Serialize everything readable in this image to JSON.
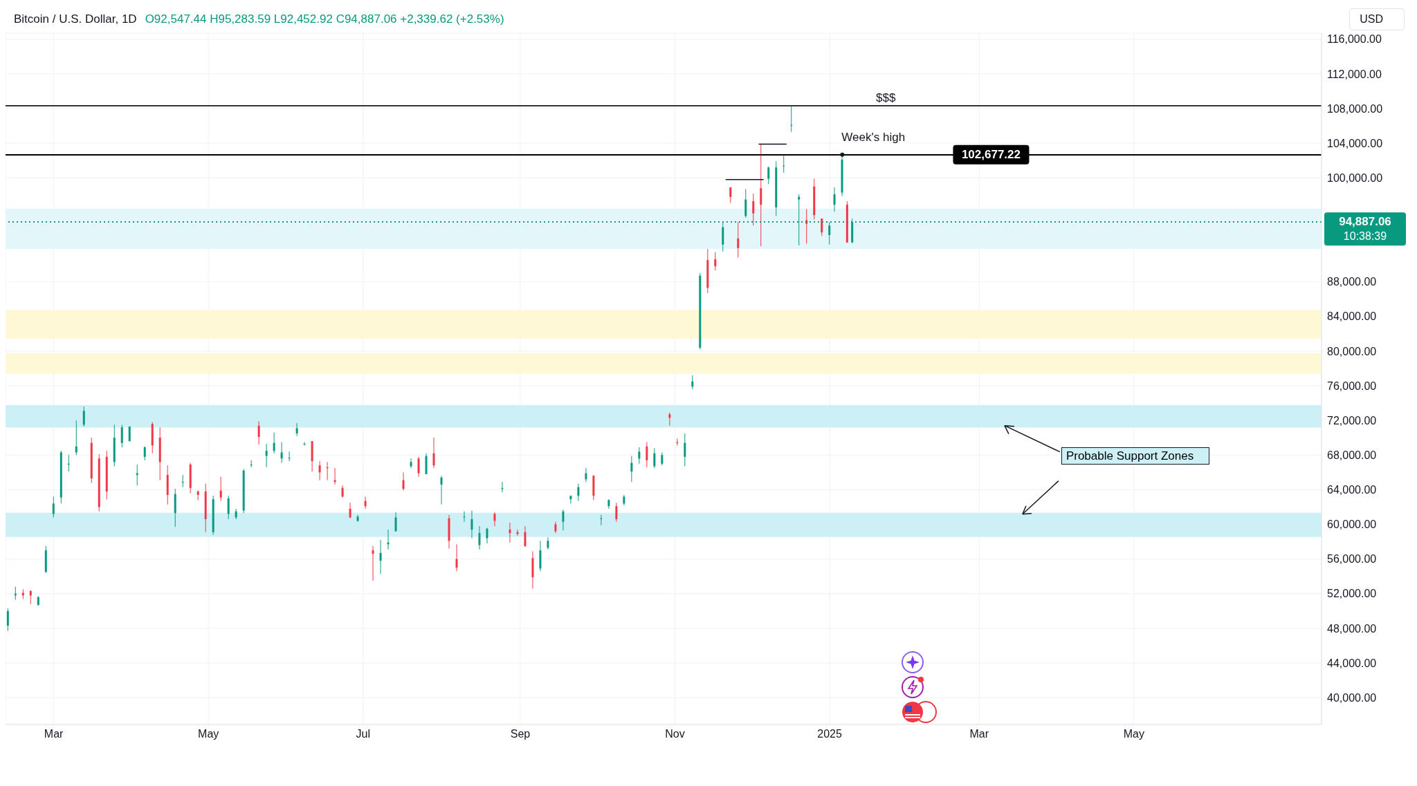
{
  "chart_data": {
    "type": "candlestick",
    "title": "Bitcoin / U.S. Dollar, 1D",
    "subtitle": "O92,547.44  H95,283.59  L92,452.92  C94,887.06  +2,339.62 (+2.53%)",
    "x": [
      "2024-02-12",
      "2024-02-15",
      "2024-02-18",
      "2024-02-21",
      "2024-02-24",
      "2024-02-27",
      "2024-03-01",
      "2024-03-04",
      "2024-03-07",
      "2024-03-10",
      "2024-03-13",
      "2024-03-16",
      "2024-03-19",
      "2024-03-22",
      "2024-03-25",
      "2024-03-28",
      "2024-03-31",
      "2024-04-03",
      "2024-04-06",
      "2024-04-09",
      "2024-04-12",
      "2024-04-15",
      "2024-04-18",
      "2024-04-21",
      "2024-04-24",
      "2024-04-27",
      "2024-04-30",
      "2024-05-03",
      "2024-05-06",
      "2024-05-09",
      "2024-05-12",
      "2024-05-15",
      "2024-05-18",
      "2024-05-21",
      "2024-05-24",
      "2024-05-27",
      "2024-05-30",
      "2024-06-02",
      "2024-06-05",
      "2024-06-08",
      "2024-06-11",
      "2024-06-14",
      "2024-06-17",
      "2024-06-20",
      "2024-06-23",
      "2024-06-26",
      "2024-06-29",
      "2024-07-02",
      "2024-07-05",
      "2024-07-08",
      "2024-07-11",
      "2024-07-14",
      "2024-07-17",
      "2024-07-20",
      "2024-07-23",
      "2024-07-26",
      "2024-07-29",
      "2024-08-01",
      "2024-08-04",
      "2024-08-07",
      "2024-08-10",
      "2024-08-13",
      "2024-08-16",
      "2024-08-19",
      "2024-08-22",
      "2024-08-25",
      "2024-08-28",
      "2024-08-31",
      "2024-09-03",
      "2024-09-06",
      "2024-09-09",
      "2024-09-12",
      "2024-09-15",
      "2024-09-18",
      "2024-09-21",
      "2024-09-24",
      "2024-09-27",
      "2024-09-30",
      "2024-10-03",
      "2024-10-06",
      "2024-10-09",
      "2024-10-12",
      "2024-10-15",
      "2024-10-18",
      "2024-10-21",
      "2024-10-24",
      "2024-10-27",
      "2024-10-30",
      "2024-11-02",
      "2024-11-05",
      "2024-11-08",
      "2024-11-11",
      "2024-11-14",
      "2024-11-17",
      "2024-11-20",
      "2024-11-23",
      "2024-11-26",
      "2024-11-29",
      "2024-12-02",
      "2024-12-05",
      "2024-12-08",
      "2024-12-11",
      "2024-12-14",
      "2024-12-17",
      "2024-12-20",
      "2024-12-23",
      "2024-12-26",
      "2024-12-29",
      "2025-01-01",
      "2025-01-03",
      "2025-01-06",
      "2025-01-08",
      "2025-01-10"
    ],
    "ohlc": [
      [
        48300,
        50300,
        47700,
        50000
      ],
      [
        51800,
        52800,
        51300,
        52000
      ],
      [
        52100,
        52500,
        51400,
        51800
      ],
      [
        52300,
        52400,
        50800,
        51800
      ],
      [
        50700,
        51700,
        50600,
        51600
      ],
      [
        54500,
        57500,
        54400,
        57000
      ],
      [
        61200,
        63200,
        60800,
        62400
      ],
      [
        63100,
        68500,
        62400,
        68300
      ],
      [
        66900,
        68000,
        66100,
        67000
      ],
      [
        68300,
        72000,
        68000,
        69000
      ],
      [
        71500,
        73600,
        71300,
        73100
      ],
      [
        69400,
        70000,
        64800,
        65300
      ],
      [
        67600,
        68100,
        61500,
        62000
      ],
      [
        67800,
        68500,
        62900,
        63800
      ],
      [
        67200,
        71500,
        66700,
        70000
      ],
      [
        69400,
        71500,
        68900,
        71200
      ],
      [
        69600,
        71300,
        69600,
        71300
      ],
      [
        65700,
        66900,
        64500,
        65900
      ],
      [
        67800,
        69000,
        67400,
        68900
      ],
      [
        71600,
        71800,
        68200,
        69100
      ],
      [
        70000,
        71200,
        65100,
        67200
      ],
      [
        65700,
        66800,
        62300,
        63400
      ],
      [
        61300,
        64100,
        59700,
        63500
      ],
      [
        64900,
        65700,
        64300,
        64900
      ],
      [
        66900,
        67100,
        63600,
        64200
      ],
      [
        63800,
        63900,
        62800,
        63400
      ],
      [
        63800,
        64700,
        59100,
        60600
      ],
      [
        59100,
        63300,
        58800,
        62900
      ],
      [
        63900,
        65500,
        62700,
        63100
      ],
      [
        61200,
        63300,
        60600,
        63000
      ],
      [
        60800,
        61800,
        60600,
        61500
      ],
      [
        61600,
        66400,
        61300,
        66200
      ],
      [
        66900,
        67400,
        66600,
        66900
      ],
      [
        71400,
        71900,
        69200,
        70100
      ],
      [
        67900,
        69300,
        66600,
        68500
      ],
      [
        68500,
        70600,
        68200,
        69400
      ],
      [
        67600,
        69500,
        67100,
        68300
      ],
      [
        67700,
        68400,
        67300,
        67700
      ],
      [
        70500,
        71700,
        70200,
        71100
      ],
      [
        69300,
        69500,
        69100,
        69300
      ],
      [
        69600,
        69600,
        66100,
        67300
      ],
      [
        66800,
        67300,
        65100,
        66000
      ],
      [
        66600,
        67200,
        65100,
        66500
      ],
      [
        65100,
        66500,
        64600,
        64900
      ],
      [
        64200,
        64500,
        63100,
        63200
      ],
      [
        61800,
        62500,
        60700,
        60800
      ],
      [
        60400,
        61100,
        60300,
        60900
      ],
      [
        62700,
        63200,
        61800,
        62100
      ],
      [
        57000,
        57500,
        53500,
        56600
      ],
      [
        55800,
        58200,
        54300,
        56700
      ],
      [
        57700,
        59400,
        57100,
        57900
      ],
      [
        59200,
        61400,
        59200,
        60800
      ],
      [
        65100,
        66000,
        63900,
        64100
      ],
      [
        66700,
        67600,
        66500,
        67200
      ],
      [
        67600,
        67800,
        65500,
        65900
      ],
      [
        65800,
        68200,
        65800,
        67900
      ],
      [
        68200,
        70000,
        66500,
        66800
      ],
      [
        64600,
        65600,
        62300,
        65400
      ],
      [
        60700,
        61100,
        57200,
        58100
      ],
      [
        56000,
        57700,
        54600,
        55000
      ],
      [
        60900,
        61500,
        60300,
        60900
      ],
      [
        59400,
        61600,
        58400,
        60600
      ],
      [
        57600,
        59800,
        57100,
        59000
      ],
      [
        58400,
        59600,
        57800,
        59500
      ],
      [
        61200,
        61400,
        59800,
        60400
      ],
      [
        64100,
        64900,
        63700,
        64200
      ],
      [
        59400,
        60200,
        57900,
        59000
      ],
      [
        59100,
        59400,
        58700,
        58900
      ],
      [
        59100,
        59800,
        57400,
        57500
      ],
      [
        56100,
        56900,
        52600,
        53900
      ],
      [
        54900,
        58100,
        54600,
        57000
      ],
      [
        57300,
        58500,
        57100,
        58100
      ],
      [
        60000,
        60300,
        59000,
        59200
      ],
      [
        60300,
        61700,
        59300,
        61500
      ],
      [
        62900,
        63300,
        62400,
        63300
      ],
      [
        63300,
        64700,
        62700,
        64300
      ],
      [
        65200,
        66500,
        64900,
        65900
      ],
      [
        65600,
        65700,
        62800,
        63300
      ],
      [
        60700,
        61100,
        59900,
        60700
      ],
      [
        62100,
        62900,
        61800,
        62800
      ],
      [
        62100,
        62500,
        60300,
        60600
      ],
      [
        62400,
        63400,
        62200,
        63200
      ],
      [
        66100,
        67900,
        64900,
        67100
      ],
      [
        67600,
        68900,
        67000,
        68400
      ],
      [
        69000,
        69500,
        66600,
        67400
      ],
      [
        66700,
        68800,
        66500,
        68200
      ],
      [
        67000,
        68300,
        66800,
        68000
      ],
      [
        72700,
        72900,
        71400,
        72300
      ],
      [
        69500,
        69900,
        69100,
        69400
      ],
      [
        67800,
        70500,
        66700,
        69400
      ],
      [
        75900,
        77200,
        75600,
        76500
      ],
      [
        80400,
        89000,
        80200,
        88700
      ],
      [
        90500,
        91800,
        86700,
        87300
      ],
      [
        90600,
        91400,
        89300,
        89800
      ],
      [
        92300,
        94900,
        91500,
        94300
      ],
      [
        98900,
        98900,
        97100,
        97800
      ],
      [
        93000,
        94900,
        90800,
        91900
      ],
      [
        95600,
        98700,
        95400,
        97500
      ],
      [
        97300,
        98200,
        94500,
        95900
      ],
      [
        98800,
        103900,
        92100,
        96900
      ],
      [
        99900,
        101300,
        99300,
        101200
      ],
      [
        96600,
        101900,
        95600,
        101200
      ],
      [
        101400,
        102600,
        100600,
        101400
      ],
      [
        106100,
        108300,
        105300,
        106100
      ],
      [
        97500,
        98100,
        92200,
        97800
      ],
      [
        95100,
        96400,
        92400,
        94700
      ],
      [
        99000,
        99900,
        95200,
        95700
      ],
      [
        95300,
        95300,
        93300,
        93700
      ],
      [
        93400,
        94900,
        92300,
        94500
      ],
      [
        96900,
        98900,
        96100,
        98100
      ],
      [
        98300,
        102677.22,
        97900,
        102100
      ],
      [
        96900,
        97300,
        92500,
        92547.44
      ],
      [
        92547.44,
        95283.59,
        92452.92,
        94887.06
      ]
    ],
    "colors": [
      "#089981",
      "#089981",
      "#f23645",
      "#f23645",
      "#089981",
      "#089981",
      "#089981",
      "#089981",
      "#089981",
      "#089981",
      "#089981",
      "#f23645",
      "#f23645",
      "#f23645",
      "#089981",
      "#089981",
      "#089981",
      "#089981",
      "#089981",
      "#f23645",
      "#f23645",
      "#f23645",
      "#089981",
      "#089981",
      "#f23645",
      "#f23645",
      "#f23645",
      "#089981",
      "#f23645",
      "#089981",
      "#089981",
      "#089981",
      "#089981",
      "#f23645",
      "#089981",
      "#089981",
      "#089981",
      "#089981",
      "#089981",
      "#089981",
      "#f23645",
      "#f23645",
      "#f23645",
      "#f23645",
      "#f23645",
      "#f23645",
      "#089981",
      "#f23645",
      "#f23645",
      "#089981",
      "#089981",
      "#089981",
      "#f23645",
      "#089981",
      "#f23645",
      "#089981",
      "#f23645",
      "#089981",
      "#f23645",
      "#f23645",
      "#089981",
      "#089981",
      "#089981",
      "#089981",
      "#f23645",
      "#089981",
      "#f23645",
      "#f23645",
      "#f23645",
      "#f23645",
      "#089981",
      "#089981",
      "#f23645",
      "#089981",
      "#089981",
      "#089981",
      "#089981",
      "#f23645",
      "#089981",
      "#089981",
      "#f23645",
      "#089981",
      "#089981",
      "#089981",
      "#f23645",
      "#089981",
      "#089981",
      "#f23645",
      "#f23645",
      "#089981",
      "#089981",
      "#089981",
      "#f23645",
      "#f23645",
      "#089981",
      "#f23645",
      "#f23645",
      "#089981",
      "#f23645",
      "#f23645",
      "#089981",
      "#089981",
      "#089981",
      "#089981",
      "#089981",
      "#f23645",
      "#f23645",
      "#f23645",
      "#089981",
      "#089981",
      "#089981",
      "#f23645",
      "#089981"
    ],
    "xlim": [
      "2024-02-11",
      "2025-07-14"
    ],
    "xticks": [
      {
        "value": "2024-03-01",
        "label": "Mar"
      },
      {
        "value": "2024-05-01",
        "label": "May"
      },
      {
        "value": "2024-07-01",
        "label": "Jul"
      },
      {
        "value": "2024-09-01",
        "label": "Sep"
      },
      {
        "value": "2024-11-01",
        "label": "Nov"
      },
      {
        "value": "2025-01-01",
        "label": "2025"
      },
      {
        "value": "2025-03-01",
        "label": "Mar"
      },
      {
        "value": "2025-05-01",
        "label": "May"
      }
    ],
    "ylim": [
      36900,
      116700
    ],
    "yticks": [
      {
        "value": 40000,
        "label": "40,000.00"
      },
      {
        "value": 44000,
        "label": "44,000.00"
      },
      {
        "value": 48000,
        "label": "48,000.00"
      },
      {
        "value": 52000,
        "label": "52,000.00"
      },
      {
        "value": 56000,
        "label": "56,000.00"
      },
      {
        "value": 60000,
        "label": "60,000.00"
      },
      {
        "value": 64000,
        "label": "64,000.00"
      },
      {
        "value": 68000,
        "label": "68,000.00"
      },
      {
        "value": 72000,
        "label": "72,000.00"
      },
      {
        "value": 76000,
        "label": "76,000.00"
      },
      {
        "value": 80000,
        "label": "80,000.00"
      },
      {
        "value": 84000,
        "label": "84,000.00"
      },
      {
        "value": 88000,
        "label": "88,000.00"
      },
      {
        "value": 100000,
        "label": "100,000.00"
      },
      {
        "value": 104000,
        "label": "104,000.00"
      },
      {
        "value": 108000,
        "label": "108,000.00"
      },
      {
        "value": 112000,
        "label": "112,000.00"
      },
      {
        "value": 116000,
        "label": "116,000.00"
      }
    ],
    "grid": true,
    "series": [
      {
        "type": "line",
        "x": [
          "2024-11-21",
          "2024-12-06"
        ],
        "values": [
          99800,
          99800
        ],
        "color": "#131722"
      },
      {
        "type": "line",
        "x": [
          "2024-12-04",
          "2024-12-15"
        ],
        "values": [
          103900,
          103900
        ],
        "color": "#131722"
      }
    ],
    "marker": "none",
    "bands": [
      {
        "axis": "y",
        "from": 91800,
        "to": 96460,
        "color": "#e3f7fa"
      },
      {
        "axis": "y",
        "from": 81440,
        "to": 84760,
        "color": "#fff8d6"
      },
      {
        "axis": "y",
        "from": 77400,
        "to": 79780,
        "color": "#fff8d6"
      },
      {
        "axis": "y",
        "from": 71180,
        "to": 73770,
        "color": "#cdf0f6"
      },
      {
        "axis": "y",
        "from": 58540,
        "to": 61340,
        "color": "#cdf0f6"
      }
    ],
    "ref_lines": [
      {
        "axis": "y",
        "value": 108300,
        "label": "$$$",
        "color": "#333333"
      },
      {
        "axis": "y",
        "value": 102677.22,
        "label": "102,677.22",
        "color": "#000000"
      },
      {
        "axis": "y",
        "value": 94887.06,
        "label": "94,887.06",
        "color": "#089981",
        "line_style": "dotted"
      }
    ],
    "annotations": [
      {
        "text": "Week's high",
        "x": "2025-01-06",
        "y": 102677.22
      },
      {
        "text": "Probable Support Zones",
        "x": "2025-03-11",
        "y": 71400
      },
      "10:38:39",
      "USD"
    ]
  }
}
